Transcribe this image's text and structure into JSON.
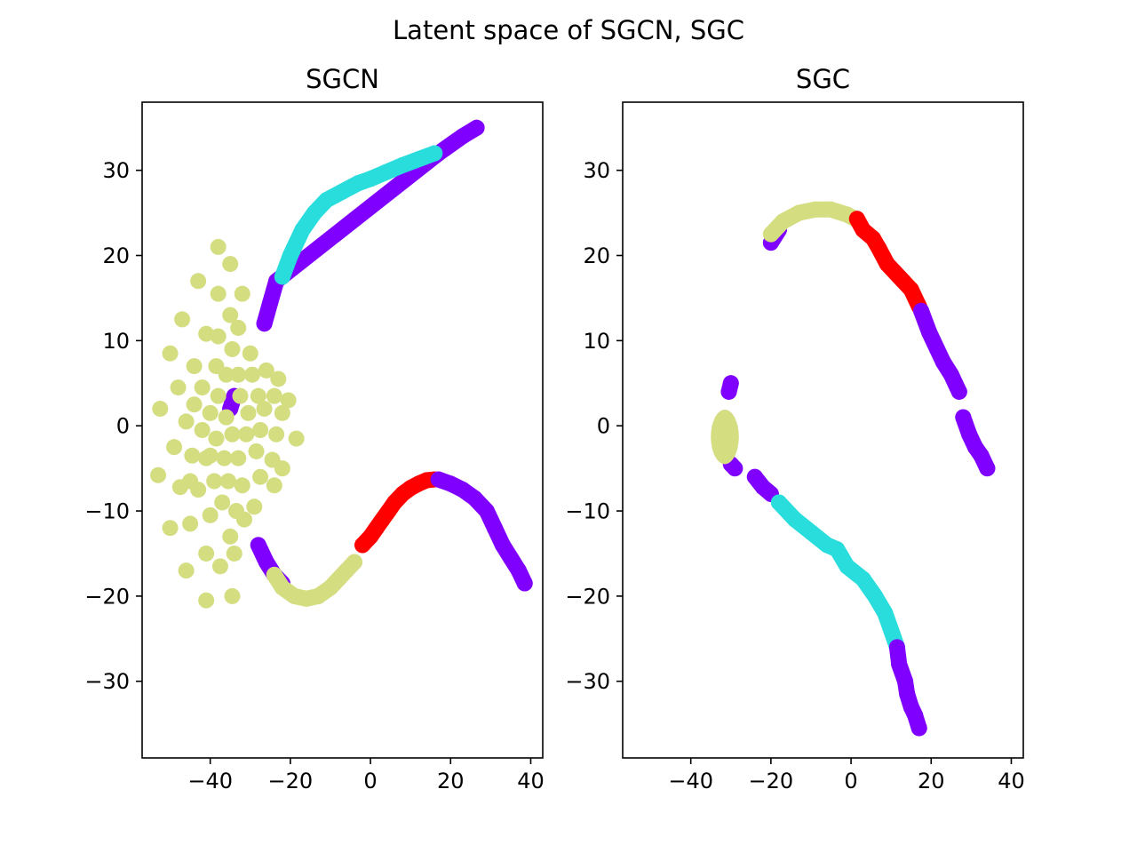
{
  "figure": {
    "title": "Latent space of SGCN, SGC"
  },
  "colors": {
    "purple": "#8000ff",
    "cyan": "#2adddd",
    "khaki": "#d4dd80",
    "red": "#ff0000"
  },
  "chart_data": [
    {
      "type": "scatter",
      "title": "SGCN",
      "xlabel": "",
      "ylabel": "",
      "xlim": [
        -57,
        43
      ],
      "ylim": [
        -39,
        38
      ],
      "xticks": [
        -40,
        -20,
        0,
        20,
        40
      ],
      "yticks": [
        -30,
        -20,
        -10,
        0,
        10,
        20,
        30
      ],
      "xtick_labels": [
        "−40",
        "−20",
        "0",
        "20",
        "40"
      ],
      "ytick_labels": [
        "−30",
        "−20",
        "−10",
        "0",
        "10",
        "20",
        "30"
      ],
      "grid": false,
      "series": [
        {
          "color": "purple",
          "kind": "curve",
          "points": [
            [
              -26.5,
              12.0
            ],
            [
              -25.0,
              14.5
            ],
            [
              -23.5,
              17.0
            ],
            [
              17.0,
              32.0
            ],
            [
              20.0,
              33.0
            ],
            [
              23.0,
              34.0
            ],
            [
              26.5,
              35.0
            ]
          ]
        },
        {
          "color": "cyan",
          "kind": "curve",
          "points": [
            [
              -22.0,
              17.5
            ],
            [
              -20.0,
              20.0
            ],
            [
              -17.0,
              23.0
            ],
            [
              -14.0,
              25.0
            ],
            [
              -11.0,
              26.5
            ],
            [
              -7.0,
              27.5
            ],
            [
              -3.0,
              28.5
            ],
            [
              0.0,
              29.0
            ],
            [
              4.0,
              29.8
            ],
            [
              8.0,
              30.6
            ],
            [
              12.0,
              31.3
            ],
            [
              16.0,
              32.0
            ]
          ]
        },
        {
          "color": "purple",
          "kind": "curve",
          "points": [
            [
              -35.0,
              2.0
            ],
            [
              -34.0,
              3.5
            ]
          ]
        },
        {
          "color": "purple",
          "kind": "curve",
          "points": [
            [
              -28.0,
              -14.0
            ],
            [
              -26.0,
              -16.0
            ],
            [
              -24.0,
              -17.5
            ],
            [
              -22.0,
              -18.5
            ]
          ]
        },
        {
          "color": "khaki",
          "kind": "curve",
          "points": [
            [
              -24.0,
              -17.5
            ],
            [
              -22.0,
              -19.0
            ],
            [
              -19.0,
              -20.0
            ],
            [
              -16.0,
              -20.3
            ],
            [
              -13.0,
              -20.0
            ],
            [
              -10.0,
              -19.0
            ],
            [
              -8.0,
              -18.0
            ],
            [
              -6.0,
              -17.0
            ],
            [
              -4.0,
              -16.0
            ]
          ]
        },
        {
          "color": "red",
          "kind": "curve",
          "points": [
            [
              -2.0,
              -14.0
            ],
            [
              0.0,
              -13.0
            ],
            [
              1.5,
              -12.0
            ],
            [
              3.0,
              -11.0
            ],
            [
              4.5,
              -10.0
            ],
            [
              6.0,
              -9.0
            ],
            [
              8.0,
              -8.0
            ],
            [
              10.0,
              -7.3
            ],
            [
              12.0,
              -6.8
            ],
            [
              14.0,
              -6.4
            ],
            [
              16.0,
              -6.3
            ]
          ]
        },
        {
          "color": "purple",
          "kind": "curve",
          "points": [
            [
              17.0,
              -6.3
            ],
            [
              20.0,
              -6.8
            ],
            [
              23.0,
              -7.5
            ],
            [
              26.0,
              -8.5
            ],
            [
              29.0,
              -10.0
            ],
            [
              31.0,
              -12.0
            ],
            [
              33.0,
              -14.0
            ],
            [
              35.0,
              -15.5
            ],
            [
              37.0,
              -17.0
            ],
            [
              38.5,
              -18.5
            ]
          ]
        },
        {
          "color": "khaki",
          "kind": "points",
          "points": [
            [
              -38,
              21
            ],
            [
              -35,
              19
            ],
            [
              -43,
              17
            ],
            [
              -38,
              15.5
            ],
            [
              -32,
              15.5
            ],
            [
              -47,
              12.5
            ],
            [
              -35,
              13
            ],
            [
              -33,
              11.5
            ],
            [
              -41,
              10.8
            ],
            [
              -38,
              10.5
            ],
            [
              -50,
              8.5
            ],
            [
              -34.5,
              9
            ],
            [
              -30,
              8.5
            ],
            [
              -44,
              7
            ],
            [
              -38.5,
              7
            ],
            [
              -36,
              6
            ],
            [
              -33,
              6
            ],
            [
              -29.5,
              6
            ],
            [
              -26,
              6.5
            ],
            [
              -23,
              5.5
            ],
            [
              -48,
              4.5
            ],
            [
              -42,
              4.5
            ],
            [
              -38,
              3.5
            ],
            [
              -32.5,
              3.5
            ],
            [
              -28,
              3.5
            ],
            [
              -24,
              3.5
            ],
            [
              -20.5,
              3
            ],
            [
              -52.5,
              2
            ],
            [
              -44,
              2.5
            ],
            [
              -40,
              1.5
            ],
            [
              -36,
              1
            ],
            [
              -30.5,
              1.5
            ],
            [
              -26.5,
              2
            ],
            [
              -22,
              1.5
            ],
            [
              -46,
              0.5
            ],
            [
              -42,
              -0.5
            ],
            [
              -38.5,
              -1.5
            ],
            [
              -34.5,
              -1
            ],
            [
              -31,
              -1
            ],
            [
              -27.5,
              -0.5
            ],
            [
              -23.5,
              -1
            ],
            [
              -18.5,
              -1.5
            ],
            [
              -49,
              -2.5
            ],
            [
              -40,
              -3.5
            ],
            [
              -36.5,
              -3.8
            ],
            [
              -33,
              -3.8
            ],
            [
              -28.5,
              -3
            ],
            [
              -24.5,
              -4
            ],
            [
              -44.5,
              -3.5
            ],
            [
              -41,
              -3.8
            ],
            [
              -22,
              -5
            ],
            [
              -53,
              -5.8
            ],
            [
              -45,
              -6.5
            ],
            [
              -39,
              -6.5
            ],
            [
              -35.5,
              -6.5
            ],
            [
              -32,
              -7
            ],
            [
              -27.5,
              -6
            ],
            [
              -24,
              -7
            ],
            [
              -47.5,
              -7.2
            ],
            [
              -43,
              -7.5
            ],
            [
              -37,
              -9
            ],
            [
              -33.5,
              -10
            ],
            [
              -29,
              -9.5
            ],
            [
              -50,
              -12
            ],
            [
              -45,
              -11.5
            ],
            [
              -40,
              -10.5
            ],
            [
              -35,
              -13
            ],
            [
              -31.5,
              -11
            ],
            [
              -41,
              -15
            ],
            [
              -37.5,
              -16.5
            ],
            [
              -34,
              -15
            ],
            [
              -46,
              -17
            ],
            [
              -41,
              -20.5
            ],
            [
              -34.5,
              -20
            ]
          ]
        }
      ]
    },
    {
      "type": "scatter",
      "title": "SGC",
      "xlabel": "",
      "ylabel": "",
      "xlim": [
        -57,
        43
      ],
      "ylim": [
        -39,
        38
      ],
      "xticks": [
        -40,
        -20,
        0,
        20,
        40
      ],
      "yticks": [
        -30,
        -20,
        -10,
        0,
        10,
        20,
        30
      ],
      "xtick_labels": [
        "−40",
        "−20",
        "0",
        "20",
        "40"
      ],
      "ytick_labels": [
        "−30",
        "−20",
        "−10",
        "0",
        "10",
        "20",
        "30"
      ],
      "grid": false,
      "series": [
        {
          "color": "purple",
          "kind": "curve",
          "points": [
            [
              -20.0,
              21.5
            ],
            [
              -18.0,
              23.0
            ]
          ]
        },
        {
          "color": "khaki",
          "kind": "curve",
          "points": [
            [
              -20.0,
              22.5
            ],
            [
              -17.0,
              24.0
            ],
            [
              -13.0,
              25.0
            ],
            [
              -9.0,
              25.4
            ],
            [
              -5.0,
              25.4
            ],
            [
              -1.0,
              24.8
            ],
            [
              1.0,
              24.3
            ]
          ]
        },
        {
          "color": "red",
          "kind": "curve",
          "points": [
            [
              1.5,
              24.3
            ],
            [
              3.0,
              23.0
            ],
            [
              5.5,
              22.0
            ],
            [
              7.0,
              20.8
            ],
            [
              9.0,
              19.0
            ],
            [
              11.0,
              18.0
            ],
            [
              13.0,
              17.0
            ],
            [
              15.0,
              16.0
            ],
            [
              17.0,
              14.0
            ]
          ]
        },
        {
          "color": "purple",
          "kind": "curve",
          "points": [
            [
              17.5,
              13.5
            ],
            [
              19.5,
              11.0
            ],
            [
              21.5,
              9.0
            ],
            [
              23.0,
              7.5
            ],
            [
              25.0,
              6.0
            ],
            [
              27.0,
              4.0
            ]
          ]
        },
        {
          "color": "purple",
          "kind": "curve",
          "points": [
            [
              28.0,
              1.0
            ],
            [
              29.5,
              -1.0
            ],
            [
              31.0,
              -2.5
            ],
            [
              32.5,
              -3.5
            ],
            [
              34.0,
              -5.0
            ]
          ]
        },
        {
          "color": "purple",
          "kind": "curve",
          "points": [
            [
              -30.0,
              5.0
            ],
            [
              -30.5,
              4.0
            ]
          ]
        },
        {
          "color": "purple",
          "kind": "curve",
          "points": [
            [
              -30.0,
              -4.5
            ],
            [
              -29.0,
              -5.0
            ]
          ]
        },
        {
          "color": "khaki",
          "kind": "ellipse",
          "center": [
            -31.5,
            -1.3
          ],
          "radius": [
            3.5,
            3.2
          ]
        },
        {
          "color": "purple",
          "kind": "curve",
          "points": [
            [
              -24.0,
              -6.0
            ],
            [
              -22.0,
              -7.2
            ],
            [
              -20.0,
              -8.0
            ]
          ]
        },
        {
          "color": "cyan",
          "kind": "curve",
          "points": [
            [
              -18.0,
              -9.0
            ],
            [
              -14.0,
              -11.0
            ],
            [
              -10.0,
              -12.5
            ],
            [
              -6.0,
              -14.0
            ],
            [
              -3.5,
              -14.5
            ],
            [
              -1.0,
              -16.5
            ],
            [
              3.0,
              -18.0
            ],
            [
              6.0,
              -20.0
            ],
            [
              8.5,
              -22.0
            ],
            [
              10.0,
              -24.0
            ],
            [
              11.5,
              -26.0
            ]
          ]
        },
        {
          "color": "purple",
          "kind": "curve",
          "points": [
            [
              11.5,
              -26.0
            ],
            [
              12.0,
              -28.0
            ],
            [
              13.5,
              -30.0
            ],
            [
              14.0,
              -31.5
            ],
            [
              15.0,
              -33.0
            ],
            [
              16.0,
              -34.0
            ],
            [
              17.0,
              -35.5
            ]
          ]
        }
      ]
    }
  ]
}
